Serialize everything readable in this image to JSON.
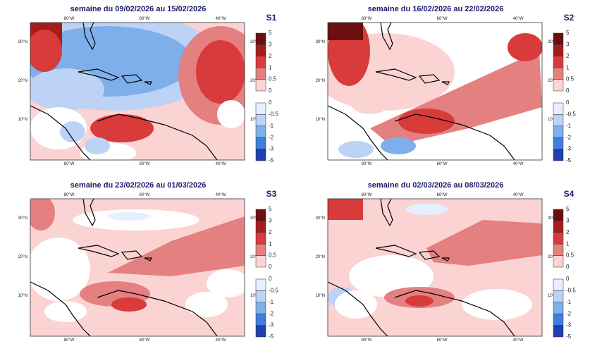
{
  "maps": [
    {
      "title": "semaine du 09/02/2026 au 15/02/2026",
      "label": "S1"
    },
    {
      "title": "semaine du 16/02/2026 au 22/02/2026",
      "label": "S2"
    },
    {
      "title": "semaine du 23/02/2026 au 01/03/2026",
      "label": "S3"
    },
    {
      "title": "semaine du 02/03/2026 au 08/03/2026",
      "label": "S4"
    }
  ],
  "lon_labels": [
    "80°W",
    "60°W",
    "40°W"
  ],
  "lat_labels": [
    "30°N",
    "20°N",
    "10°N"
  ],
  "legend_positive": {
    "ticks": [
      5,
      3,
      2,
      1,
      0.5,
      0
    ],
    "colors": [
      "#6b0f0f",
      "#a51c1c",
      "#d93a3a",
      "#e48080",
      "#fbd3d3"
    ]
  },
  "legend_negative": {
    "ticks": [
      0,
      -0.5,
      -1,
      -2,
      -3,
      -5
    ],
    "colors": [
      "#e6efff",
      "#bcd3f5",
      "#7fafea",
      "#3f7fdb",
      "#1d3fb0"
    ]
  }
}
